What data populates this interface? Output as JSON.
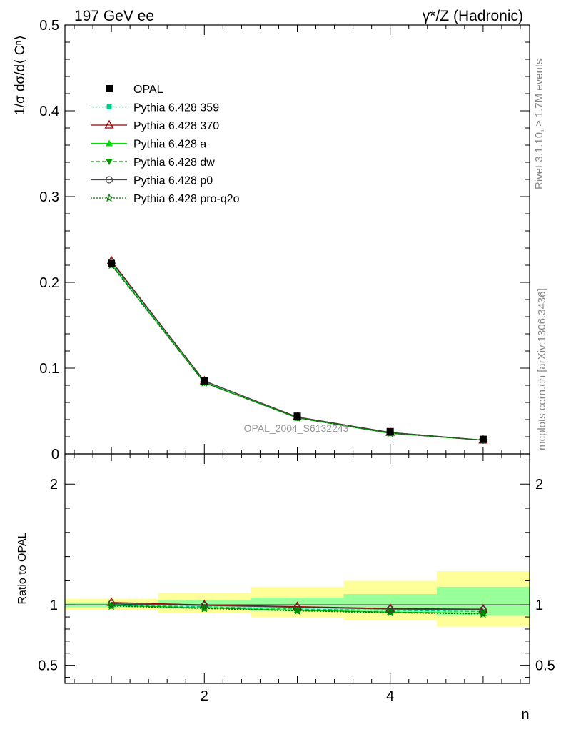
{
  "header": {
    "left": "197 GeV ee",
    "right": "γ*/Z (Hadronic)"
  },
  "side_labels": {
    "rivet": "Rivet 3.1.10, ≥ 1.7M events",
    "mcplots": "mcplots.cern.ch [arXiv:1306.3436]"
  },
  "watermark": "OPAL_2004_S6132243",
  "colors": {
    "data": "#000000",
    "p359": "#00cc88",
    "p370": "#990000",
    "pa": "#00dd00",
    "pdw": "#009900",
    "pp0": "#444444",
    "pproq2o": "#007700",
    "band_inner": "#99ff99",
    "band_outer": "#ffff99"
  },
  "chart_data": [
    {
      "type": "line",
      "panel": "main",
      "ylabel": "1/σ dσ/d⟨ Cⁿ⟩",
      "ylim": [
        0,
        0.5
      ],
      "xlim": [
        0.5,
        5.5
      ],
      "yticks": [
        "0",
        "0.1",
        "0.2",
        "0.3",
        "0.4",
        "0.5"
      ],
      "x": [
        1,
        2,
        3,
        4,
        5
      ],
      "series": [
        {
          "name": "OPAL",
          "marker": "square",
          "values": [
            0.222,
            0.085,
            0.044,
            0.026,
            0.017
          ]
        },
        {
          "name": "Pythia 6.428 359",
          "marker": "square-small",
          "dash": "dashed",
          "values": [
            0.222,
            0.084,
            0.043,
            0.025,
            0.016
          ]
        },
        {
          "name": "Pythia 6.428 370",
          "marker": "triangle-open",
          "dash": "solid",
          "values": [
            0.225,
            0.085,
            0.043,
            0.025,
            0.016
          ]
        },
        {
          "name": "Pythia 6.428 a",
          "marker": "triangle",
          "dash": "solid",
          "values": [
            0.221,
            0.083,
            0.042,
            0.024,
            0.016
          ]
        },
        {
          "name": "Pythia 6.428 dw",
          "marker": "triangle-down",
          "dash": "dashed",
          "values": [
            0.221,
            0.083,
            0.042,
            0.024,
            0.016
          ]
        },
        {
          "name": "Pythia 6.428 p0",
          "marker": "circle-open",
          "dash": "solid",
          "values": [
            0.224,
            0.085,
            0.043,
            0.025,
            0.016
          ]
        },
        {
          "name": "Pythia 6.428 pro-q2o",
          "marker": "star",
          "dash": "dotted",
          "values": [
            0.22,
            0.083,
            0.042,
            0.024,
            0.016
          ]
        }
      ]
    },
    {
      "type": "line",
      "panel": "ratio",
      "ylabel": "Ratio to OPAL",
      "xlabel": "n",
      "ylim": [
        0.35,
        2.25
      ],
      "xticks": [
        "2",
        "4"
      ],
      "yticks": [
        "0.5",
        "1",
        "2"
      ],
      "x": [
        1,
        2,
        3,
        4,
        5
      ],
      "bands": {
        "bin_edges": [
          0.5,
          1.5,
          2.5,
          3.5,
          4.5,
          5.5
        ],
        "inner": [
          [
            0.98,
            1.02
          ],
          [
            0.97,
            1.04
          ],
          [
            0.95,
            1.06
          ],
          [
            0.93,
            1.09
          ],
          [
            0.91,
            1.15
          ]
        ],
        "outer": [
          [
            0.96,
            1.05
          ],
          [
            0.93,
            1.1
          ],
          [
            0.9,
            1.15
          ],
          [
            0.87,
            1.2
          ],
          [
            0.82,
            1.28
          ]
        ]
      },
      "series": [
        {
          "name": "Pythia 6.428 359",
          "values": [
            1.0,
            0.985,
            0.965,
            0.955,
            0.945
          ]
        },
        {
          "name": "Pythia 6.428 370",
          "values": [
            1.02,
            1.0,
            0.985,
            0.97,
            0.965
          ]
        },
        {
          "name": "Pythia 6.428 a",
          "values": [
            0.995,
            0.975,
            0.955,
            0.94,
            0.93
          ]
        },
        {
          "name": "Pythia 6.428 dw",
          "values": [
            0.995,
            0.975,
            0.955,
            0.94,
            0.93
          ]
        },
        {
          "name": "Pythia 6.428 p0",
          "values": [
            1.01,
            0.995,
            0.98,
            0.965,
            0.96
          ]
        },
        {
          "name": "Pythia 6.428 pro-q2o",
          "values": [
            0.99,
            0.97,
            0.95,
            0.935,
            0.925
          ]
        }
      ]
    }
  ]
}
